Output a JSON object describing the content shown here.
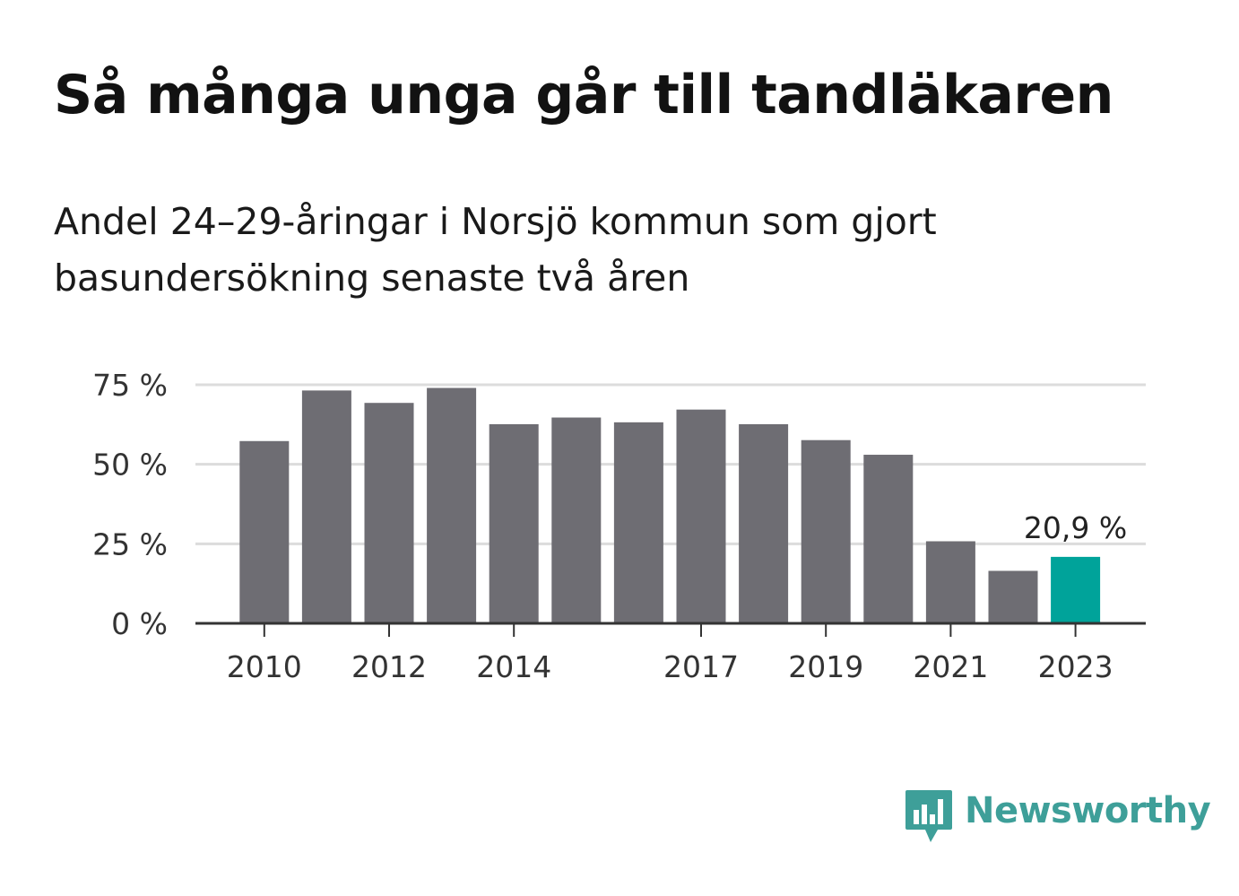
{
  "title": "Så många unga går till tandläkaren",
  "subtitle": "Andel 24–29-åringar i Norsjö kommun som gjort basundersökning senaste två åren",
  "chart_data": {
    "type": "bar",
    "categories": [
      "2010",
      "2011",
      "2012",
      "2013",
      "2014",
      "2015",
      "2016",
      "2017",
      "2018",
      "2019",
      "2020",
      "2021",
      "2022",
      "2023"
    ],
    "x_tick_labels": [
      "2010",
      "2012",
      "2014",
      "2017",
      "2019",
      "2021",
      "2023"
    ],
    "values": [
      57.3,
      73.2,
      69.3,
      74.0,
      62.6,
      64.7,
      63.2,
      67.2,
      62.6,
      57.6,
      53.0,
      25.8,
      16.5,
      20.9
    ],
    "ylim": [
      0,
      75
    ],
    "y_ticks": [
      0,
      25,
      50,
      75
    ],
    "y_tick_labels": [
      "0 %",
      "25 %",
      "50 %",
      "75 %"
    ],
    "grid": true,
    "highlight": {
      "category": "2023",
      "label": "20,9 %"
    },
    "colors": {
      "bar": "#6e6d73",
      "highlight": "#00a39a",
      "grid": "#dcdcdc",
      "axis": "#333333"
    }
  },
  "logo": {
    "text": "Newsworthy",
    "icon": "bar-chart-speech-bubble-icon",
    "color": "#3e9f99"
  }
}
